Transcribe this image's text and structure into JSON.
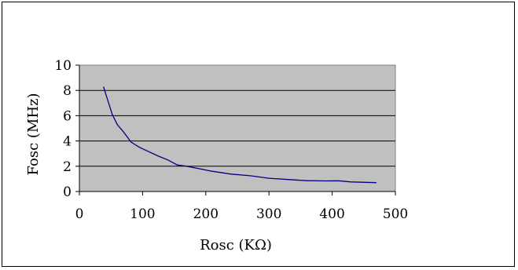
{
  "chart_data": {
    "type": "line",
    "title": "",
    "xlabel": "Rosc  (KΩ)",
    "ylabel": "Fosc  (MHz)",
    "xlim": [
      0,
      500
    ],
    "ylim": [
      0,
      10
    ],
    "x_ticks": [
      "0",
      "100",
      "200",
      "300",
      "400",
      "500"
    ],
    "y_ticks": [
      "0",
      "2",
      "4",
      "6",
      "8",
      "10"
    ],
    "grid": "horizontal",
    "plot_background": "#c0c0c0",
    "series": [
      {
        "color": "#000080",
        "points": [
          [
            38,
            8.3
          ],
          [
            45,
            7.2
          ],
          [
            52,
            6.1
          ],
          [
            60,
            5.3
          ],
          [
            70,
            4.7
          ],
          [
            82,
            3.9
          ],
          [
            95,
            3.5
          ],
          [
            110,
            3.15
          ],
          [
            125,
            2.8
          ],
          [
            140,
            2.5
          ],
          [
            155,
            2.1
          ],
          [
            170,
            2.0
          ],
          [
            190,
            1.8
          ],
          [
            210,
            1.6
          ],
          [
            240,
            1.38
          ],
          [
            270,
            1.25
          ],
          [
            300,
            1.05
          ],
          [
            330,
            0.95
          ],
          [
            360,
            0.86
          ],
          [
            390,
            0.84
          ],
          [
            410,
            0.85
          ],
          [
            430,
            0.76
          ],
          [
            470,
            0.7
          ]
        ]
      }
    ]
  }
}
